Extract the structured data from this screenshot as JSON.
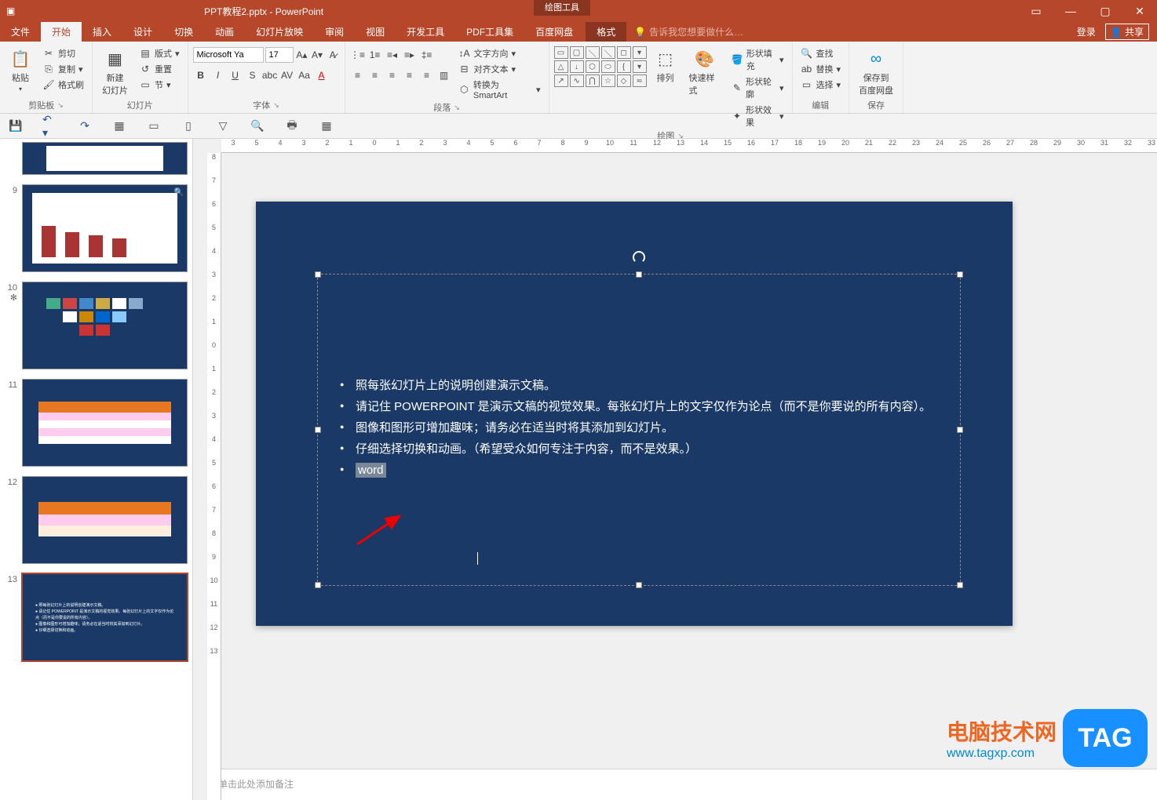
{
  "titlebar": {
    "filename": "PPT教程2.pptx - PowerPoint",
    "context_tab": "绘图工具"
  },
  "menubar": {
    "items": [
      "文件",
      "开始",
      "插入",
      "设计",
      "切换",
      "动画",
      "幻灯片放映",
      "审阅",
      "视图",
      "开发工具",
      "PDF工具集",
      "百度网盘",
      "格式"
    ],
    "active_index": 1,
    "context_index": 12,
    "tellme": "告诉我您想要做什么…",
    "login": "登录",
    "share": "共享"
  },
  "ribbon": {
    "clipboard": {
      "label": "剪贴板",
      "paste": "粘贴",
      "cut": "剪切",
      "copy": "复制",
      "format_painter": "格式刷"
    },
    "slides": {
      "label": "幻灯片",
      "new_slide": "新建\n幻灯片",
      "layout": "版式",
      "reset": "重置",
      "section": "节"
    },
    "font": {
      "label": "字体",
      "name": "Microsoft Ya",
      "size": "17"
    },
    "paragraph": {
      "label": "段落",
      "text_direction": "文字方向",
      "align_text": "对齐文本",
      "convert_smartart": "转换为 SmartArt"
    },
    "drawing": {
      "label": "绘图",
      "arrange": "排列",
      "quick_styles": "快速样式",
      "shape_fill": "形状填充",
      "shape_outline": "形状轮廓",
      "shape_effects": "形状效果"
    },
    "editing": {
      "label": "编辑",
      "find": "查找",
      "replace": "替换",
      "select": "选择"
    },
    "save": {
      "label": "保存",
      "save_to": "保存到\n百度网盘"
    }
  },
  "slides_panel": {
    "numbers": [
      "9",
      "10",
      "11",
      "12",
      "13"
    ],
    "selected_index": 4
  },
  "slide_content": {
    "bullets": [
      "照每张幻灯片上的说明创建演示文稿。",
      "请记住 POWERPOINT 是演示文稿的视觉效果。每张幻灯片上的文字仅作为论点（而不是你要说的所有内容）。",
      "图像和图形可增加趣味；请务必在适当时将其添加到幻灯片。",
      "仔细选择切换和动画。（希望受众如何专注于内容，而不是效果。）"
    ],
    "typing_word": "word"
  },
  "notes": {
    "placeholder": "单击此处添加备注"
  },
  "watermark": {
    "cn": "电脑技术网",
    "url": "www.tagxp.com",
    "tag": "TAG"
  },
  "colors": {
    "brand": "#b7472a",
    "slide_bg": "#1a3966",
    "arrow_yellow": "#d92",
    "arrow_red": "#e00000",
    "wm_orange": "#e62",
    "wm_blue": "#0089d6",
    "tag_bg": "#1890ff"
  }
}
